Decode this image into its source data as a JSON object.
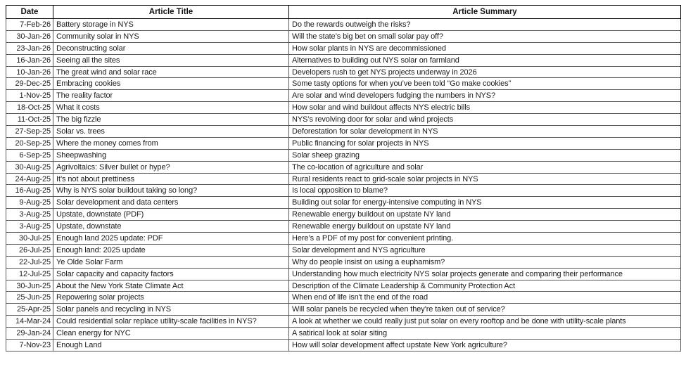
{
  "table": {
    "headers": [
      "Date",
      "Article Title",
      "Article Summary"
    ],
    "rows": [
      {
        "date": "7-Feb-26",
        "title": "Battery storage in NYS",
        "summary": "Do the rewards outweigh the risks?"
      },
      {
        "date": "30-Jan-26",
        "title": "Community solar in NYS",
        "summary": "Will the state’s big bet on small solar pay off?"
      },
      {
        "date": "23-Jan-26",
        "title": "Deconstructing solar",
        "summary": "How solar plants in NYS are decommissioned"
      },
      {
        "date": "16-Jan-26",
        "title": "Seeing all the sites",
        "summary": "Alternatives to building out NYS solar on farmland"
      },
      {
        "date": "10-Jan-26",
        "title": "The great wind and solar race",
        "summary": "Developers rush to get NYS projects underway in 2026"
      },
      {
        "date": "29-Dec-25",
        "title": "Embracing cookies",
        "summary": "Some tasty options for when you’ve been told “Go make cookies”"
      },
      {
        "date": "1-Nov-25",
        "title": "The reality factor",
        "summary": "Are solar and wind developers fudging the numbers in NYS?"
      },
      {
        "date": "18-Oct-25",
        "title": "What it costs",
        "summary": "How solar and wind buildout affects NYS electric bills"
      },
      {
        "date": "11-Oct-25",
        "title": "The big fizzle",
        "summary": "NYS’s revolving door for solar and wind projects"
      },
      {
        "date": "27-Sep-25",
        "title": "Solar vs. trees",
        "summary": "Deforestation for solar development in NYS"
      },
      {
        "date": "20-Sep-25",
        "title": "Where the money comes from",
        "summary": "Public financing for solar projects in NYS"
      },
      {
        "date": "6-Sep-25",
        "title": "Sheepwashing",
        "summary": "Solar sheep grazing"
      },
      {
        "date": "30-Aug-25",
        "title": "Agrivoltaics: Silver bullet or hype?",
        "summary": "The co-location of agriculture and solar"
      },
      {
        "date": "24-Aug-25",
        "title": "It’s not about prettiness",
        "summary": "Rural residents react to grid-scale solar projects in NYS"
      },
      {
        "date": "16-Aug-25",
        "title": "Why is NYS solar buildout taking so long?",
        "summary": "Is local opposition to blame?"
      },
      {
        "date": "9-Aug-25",
        "title": "Solar development and data centers",
        "summary": "Building out solar for energy-intensive computing in NYS"
      },
      {
        "date": "3-Aug-25",
        "title": "Upstate, downstate (PDF)",
        "summary": "Renewable energy buildout on upstate NY land"
      },
      {
        "date": "3-Aug-25",
        "title": "Upstate, downstate",
        "summary": "Renewable energy buildout on upstate NY land"
      },
      {
        "date": "30-Jul-25",
        "title": "Enough land 2025 update: PDF",
        "summary": "Here’s a PDF of my post for convenient printing."
      },
      {
        "date": "26-Jul-25",
        "title": "Enough land: 2025 update",
        "summary": "Solar development and NYS agriculture"
      },
      {
        "date": "22-Jul-25",
        "title": "Ye Olde Solar Farm",
        "summary": "Why do people insist on using a euphamism?"
      },
      {
        "date": "12-Jul-25",
        "title": "Solar capacity and capacity factors",
        "summary": "Understanding how much electricity NYS solar projects generate and comparing their performance"
      },
      {
        "date": "30-Jun-25",
        "title": "About the New York State Climate Act",
        "summary": "Description of the Climate Leadership & Community Protection Act"
      },
      {
        "date": "25-Jun-25",
        "title": "Repowering solar projects",
        "summary": "When end of life isn't the end of the road"
      },
      {
        "date": "25-Apr-25",
        "title": "Solar panels and recycling in NYS",
        "summary": "Will solar panels be recycled when they're taken out of service?"
      },
      {
        "date": "14-Mar-24",
        "title": "Could residential solar replace utility-scale facilities in NYS?",
        "summary": "A look at whether we could really just put solar on every rooftop and be done with utility-scale plants"
      },
      {
        "date": "29-Jan-24",
        "title": "Clean energy for NYC",
        "summary": "A satirical look at solar siting"
      },
      {
        "date": "7-Nov-23",
        "title": "Enough Land",
        "summary": "How will solar development affect upstate New York agriculture?"
      }
    ]
  }
}
